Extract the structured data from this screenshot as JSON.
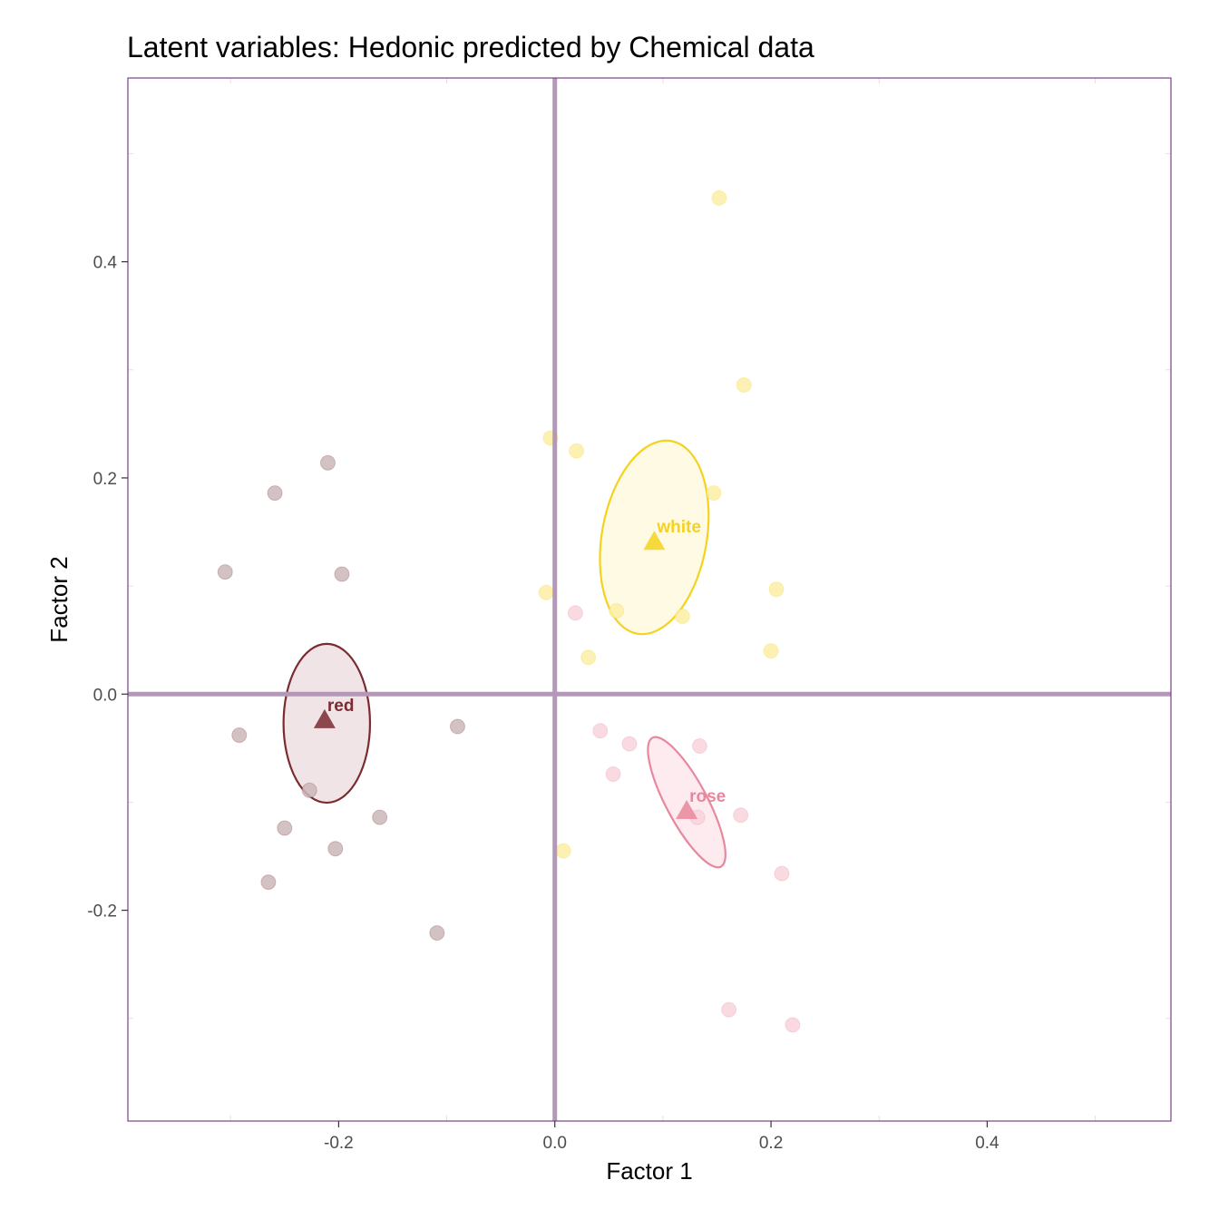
{
  "chart_data": {
    "type": "scatter",
    "title": "Latent variables: Hedonic predicted by Chemical data",
    "xlabel": "Factor 1",
    "ylabel": "Factor 2",
    "xlim": [
      -0.395,
      0.57
    ],
    "ylim": [
      -0.395,
      0.57
    ],
    "x_ticks": [
      -0.2,
      0.0,
      0.2,
      0.4
    ],
    "x_tick_labels": [
      "-0.2",
      "0.0",
      "0.2",
      "0.4"
    ],
    "y_ticks": [
      -0.2,
      0.0,
      0.2,
      0.4
    ],
    "y_tick_labels": [
      "-0.2",
      "0.0",
      "0.2",
      "0.4"
    ],
    "grid": false,
    "reference_lines": {
      "x": 0,
      "y": 0,
      "color": "#b497b9"
    },
    "frame_color": "#7b3f8a",
    "series": [
      {
        "name": "red",
        "color": "#7a2b30",
        "point_fill": "#cbb7b9",
        "ellipse_fill": "#f1e4e6",
        "mean": {
          "x": -0.213,
          "y": -0.024
        },
        "ellipse": {
          "cx": -0.211,
          "cy": -0.027,
          "rx": 0.04,
          "ry": 0.0735,
          "angle": 0
        },
        "points": [
          {
            "x": -0.21,
            "y": 0.214
          },
          {
            "x": -0.259,
            "y": 0.186
          },
          {
            "x": -0.305,
            "y": 0.113
          },
          {
            "x": -0.197,
            "y": 0.111
          },
          {
            "x": -0.292,
            "y": -0.038
          },
          {
            "x": -0.09,
            "y": -0.03
          },
          {
            "x": -0.227,
            "y": -0.089
          },
          {
            "x": -0.162,
            "y": -0.114
          },
          {
            "x": -0.25,
            "y": -0.124
          },
          {
            "x": -0.203,
            "y": -0.143
          },
          {
            "x": -0.265,
            "y": -0.174
          },
          {
            "x": -0.109,
            "y": -0.221
          }
        ]
      },
      {
        "name": "white",
        "color": "#f5d21f",
        "point_fill": "#fbeea6",
        "ellipse_fill": "#fefae4",
        "mean": {
          "x": 0.092,
          "y": 0.141
        },
        "ellipse": {
          "cx": 0.092,
          "cy": 0.145,
          "rx": 0.0485,
          "ry": 0.0905,
          "angle": 10
        },
        "points": [
          {
            "x": 0.152,
            "y": 0.459
          },
          {
            "x": 0.175,
            "y": 0.286
          },
          {
            "x": -0.004,
            "y": 0.237
          },
          {
            "x": 0.02,
            "y": 0.225
          },
          {
            "x": 0.147,
            "y": 0.186
          },
          {
            "x": -0.008,
            "y": 0.094
          },
          {
            "x": 0.205,
            "y": 0.097
          },
          {
            "x": 0.057,
            "y": 0.077
          },
          {
            "x": 0.118,
            "y": 0.072
          },
          {
            "x": 0.2,
            "y": 0.04
          },
          {
            "x": 0.031,
            "y": 0.034
          },
          {
            "x": 0.008,
            "y": -0.145
          }
        ]
      },
      {
        "name": "rose",
        "color": "#e8889c",
        "point_fill": "#f8d3dc",
        "ellipse_fill": "#fdebef",
        "mean": {
          "x": 0.122,
          "y": -0.108
        },
        "ellipse": {
          "cx": 0.122,
          "cy": -0.1,
          "rx": 0.019,
          "ry": 0.0675,
          "angle": -28
        },
        "points": [
          {
            "x": 0.042,
            "y": -0.034
          },
          {
            "x": 0.069,
            "y": -0.046
          },
          {
            "x": 0.134,
            "y": -0.048
          },
          {
            "x": 0.054,
            "y": -0.074
          },
          {
            "x": 0.132,
            "y": -0.114
          },
          {
            "x": 0.172,
            "y": -0.112
          },
          {
            "x": 0.21,
            "y": -0.166
          },
          {
            "x": 0.019,
            "y": 0.075
          },
          {
            "x": 0.161,
            "y": -0.292
          },
          {
            "x": 0.22,
            "y": -0.306
          }
        ]
      }
    ]
  }
}
